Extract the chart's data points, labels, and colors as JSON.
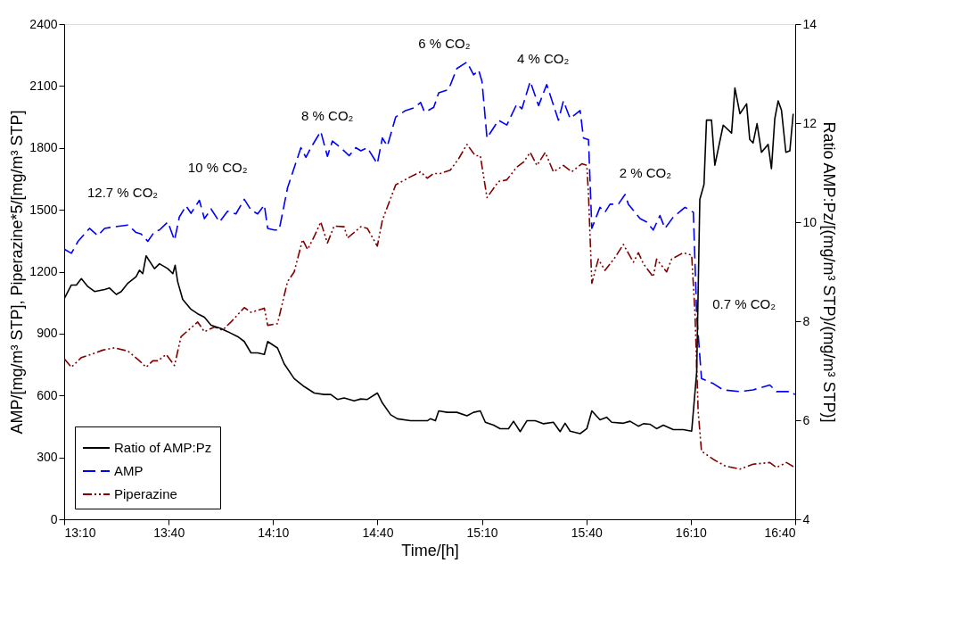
{
  "chart_data": {
    "type": "line",
    "xlabel": "Time/[h]",
    "ylabel": "AMP/[mg/m³ STP], Piperazine*5/[mg/m³ STP]",
    "y2label": "Ratio AMP:Pz/[(mg/m³ STP)/(mg/m³ STP)]",
    "xlim": [
      13.1667,
      16.6667
    ],
    "xticks": [
      {
        "value": 13.1667,
        "label": "13:10"
      },
      {
        "value": 13.6667,
        "label": "13:40"
      },
      {
        "value": 14.1667,
        "label": "14:10"
      },
      {
        "value": 14.6667,
        "label": "14:40"
      },
      {
        "value": 15.1667,
        "label": "15:10"
      },
      {
        "value": 15.6667,
        "label": "15:40"
      },
      {
        "value": 16.1667,
        "label": "16:10"
      },
      {
        "value": 16.6667,
        "label": "16:40"
      }
    ],
    "ylim": [
      0,
      2400
    ],
    "yticks": [
      0,
      300,
      600,
      900,
      1200,
      1500,
      1800,
      2100,
      2400
    ],
    "y2lim": [
      4,
      14
    ],
    "y2ticks": [
      4,
      6,
      8,
      10,
      12,
      14
    ],
    "grid": false,
    "legend": "bottom left",
    "marker": "none",
    "series": [
      {
        "name": "Ratio of AMP:Pz",
        "color": "#000000",
        "axis": "y2",
        "line_style": "solid",
        "x": [
          13.169,
          13.201,
          13.225,
          13.249,
          13.28,
          13.312,
          13.36,
          13.384,
          13.416,
          13.44,
          13.472,
          13.511,
          13.527,
          13.543,
          13.559,
          13.599,
          13.623,
          13.663,
          13.687,
          13.698,
          13.71,
          13.734,
          13.774,
          13.806,
          13.838,
          13.87,
          13.918,
          13.949,
          13.997,
          14.029,
          14.061,
          14.093,
          14.125,
          14.141,
          14.188,
          14.22,
          14.268,
          14.316,
          14.364,
          14.411,
          14.443,
          14.475,
          14.507,
          14.555,
          14.587,
          14.618,
          14.666,
          14.69,
          14.73,
          14.762,
          14.825,
          14.905,
          14.92,
          14.944,
          14.96,
          15.0,
          15.047,
          15.095,
          15.127,
          15.159,
          15.183,
          15.223,
          15.254,
          15.294,
          15.318,
          15.35,
          15.382,
          15.422,
          15.462,
          15.509,
          15.541,
          15.565,
          15.589,
          15.637,
          15.669,
          15.693,
          15.732,
          15.764,
          15.788,
          15.844,
          15.876,
          15.916,
          15.94,
          15.971,
          16.003,
          16.035,
          16.083,
          16.131,
          16.171,
          16.195,
          16.21,
          16.23,
          16.242,
          16.266,
          16.282,
          16.322,
          16.362,
          16.378,
          16.402,
          16.434,
          16.449,
          16.465,
          16.484,
          16.505,
          16.537,
          16.553,
          16.569,
          16.585,
          16.601,
          16.622,
          16.641,
          16.657
        ],
        "values": [
          8.47,
          8.73,
          8.73,
          8.86,
          8.7,
          8.6,
          8.64,
          8.67,
          8.54,
          8.6,
          8.77,
          8.9,
          9.03,
          8.96,
          9.32,
          9.06,
          9.16,
          9.06,
          8.96,
          9.13,
          8.8,
          8.44,
          8.24,
          8.15,
          8.08,
          7.92,
          7.85,
          7.79,
          7.69,
          7.59,
          7.36,
          7.36,
          7.33,
          7.59,
          7.46,
          7.14,
          6.84,
          6.68,
          6.55,
          6.52,
          6.52,
          6.42,
          6.45,
          6.39,
          6.43,
          6.42,
          6.55,
          6.35,
          6.11,
          6.03,
          5.99,
          5.99,
          6.03,
          5.99,
          6.19,
          6.16,
          6.16,
          6.09,
          6.16,
          6.19,
          5.96,
          5.9,
          5.83,
          5.83,
          5.98,
          5.77,
          5.99,
          5.99,
          5.93,
          5.96,
          5.77,
          5.94,
          5.78,
          5.73,
          5.83,
          6.19,
          6.01,
          6.06,
          5.96,
          5.94,
          5.98,
          5.88,
          5.93,
          5.92,
          5.83,
          5.9,
          5.81,
          5.81,
          5.78,
          6.97,
          10.46,
          10.76,
          12.06,
          12.06,
          11.15,
          11.96,
          11.8,
          12.71,
          12.19,
          12.39,
          11.67,
          11.6,
          11.99,
          11.41,
          11.57,
          11.08,
          12.09,
          12.45,
          12.26,
          11.41,
          11.44,
          12.19
        ]
      },
      {
        "name": "AMP",
        "color": "#0000ff",
        "line_style": "dashed",
        "x": [
          13.169,
          13.201,
          13.233,
          13.288,
          13.328,
          13.36,
          13.408,
          13.472,
          13.511,
          13.535,
          13.567,
          13.599,
          13.623,
          13.663,
          13.695,
          13.718,
          13.75,
          13.774,
          13.814,
          13.838,
          13.87,
          13.91,
          13.949,
          13.989,
          14.029,
          14.061,
          14.093,
          14.125,
          14.141,
          14.172,
          14.196,
          14.236,
          14.3,
          14.324,
          14.348,
          14.395,
          14.427,
          14.451,
          14.491,
          14.531,
          14.563,
          14.587,
          14.618,
          14.666,
          14.69,
          14.714,
          14.754,
          14.801,
          14.841,
          14.873,
          14.889,
          14.896,
          14.936,
          14.96,
          15.007,
          15.047,
          15.095,
          15.127,
          15.151,
          15.167,
          15.191,
          15.246,
          15.286,
          15.334,
          15.358,
          15.398,
          15.438,
          15.477,
          15.533,
          15.557,
          15.589,
          15.637,
          15.653,
          15.677,
          15.693,
          15.732,
          15.756,
          15.78,
          15.82,
          15.852,
          15.868,
          15.924,
          15.955,
          15.987,
          16.019,
          16.043,
          16.083,
          16.139,
          16.179,
          16.195,
          16.218,
          16.274,
          16.322,
          16.402,
          16.465,
          16.545,
          16.577,
          16.649,
          16.665
        ],
        "values": [
          1308,
          1289,
          1347,
          1410,
          1374,
          1410,
          1418,
          1426,
          1390,
          1383,
          1347,
          1394,
          1402,
          1441,
          1352,
          1465,
          1519,
          1483,
          1546,
          1457,
          1504,
          1441,
          1493,
          1480,
          1551,
          1499,
          1480,
          1523,
          1410,
          1402,
          1402,
          1606,
          1801,
          1754,
          1801,
          1880,
          1759,
          1833,
          1801,
          1762,
          1801,
          1786,
          1801,
          1723,
          1848,
          1809,
          1950,
          1981,
          1994,
          2020,
          1981,
          1973,
          1997,
          2067,
          2083,
          2185,
          2216,
          2154,
          2177,
          2122,
          1848,
          1934,
          1911,
          2013,
          1989,
          2122,
          2005,
          2107,
          1934,
          2028,
          1942,
          1981,
          1848,
          1840,
          1410,
          1512,
          1488,
          1527,
          1527,
          1574,
          1527,
          1457,
          1441,
          1402,
          1472,
          1410,
          1465,
          1512,
          1488,
          995,
          682,
          658,
          627,
          619,
          627,
          651,
          619,
          619,
          604
        ]
      },
      {
        "name": "Piperazine",
        "color": "#800000",
        "line_style": "dotted",
        "x": [
          13.169,
          13.201,
          13.249,
          13.296,
          13.352,
          13.408,
          13.472,
          13.527,
          13.559,
          13.591,
          13.615,
          13.655,
          13.695,
          13.726,
          13.806,
          13.838,
          13.886,
          13.925,
          13.965,
          14.029,
          14.061,
          14.125,
          14.141,
          14.188,
          14.236,
          14.268,
          14.308,
          14.332,
          14.364,
          14.395,
          14.427,
          14.459,
          14.507,
          14.523,
          14.587,
          14.618,
          14.666,
          14.69,
          14.722,
          14.754,
          14.825,
          14.873,
          14.905,
          14.936,
          14.968,
          15.015,
          15.055,
          15.095,
          15.135,
          15.159,
          15.191,
          15.246,
          15.286,
          15.334,
          15.366,
          15.398,
          15.43,
          15.47,
          15.509,
          15.557,
          15.597,
          15.645,
          15.669,
          15.677,
          15.693,
          15.724,
          15.756,
          15.804,
          15.844,
          15.892,
          15.916,
          15.94,
          15.987,
          16.003,
          16.051,
          16.075,
          16.131,
          16.171,
          16.187,
          16.202,
          16.218,
          16.274,
          16.33,
          16.402,
          16.465,
          16.545,
          16.577,
          16.625,
          16.665
        ],
        "values": [
          776,
          737,
          784,
          799,
          820,
          831,
          815,
          768,
          737,
          768,
          768,
          799,
          745,
          885,
          956,
          909,
          932,
          917,
          956,
          1026,
          1003,
          1023,
          940,
          948,
          1152,
          1199,
          1355,
          1308,
          1371,
          1441,
          1339,
          1421,
          1418,
          1363,
          1418,
          1410,
          1324,
          1449,
          1535,
          1621,
          1660,
          1684,
          1653,
          1676,
          1676,
          1692,
          1747,
          1817,
          1762,
          1762,
          1559,
          1637,
          1645,
          1707,
          1731,
          1778,
          1715,
          1778,
          1684,
          1715,
          1684,
          1723,
          1715,
          1574,
          1144,
          1261,
          1206,
          1269,
          1332,
          1246,
          1292,
          1238,
          1175,
          1261,
          1199,
          1261,
          1292,
          1280,
          995,
          525,
          330,
          291,
          259,
          243,
          267,
          275,
          251,
          275,
          251
        ]
      }
    ],
    "annotations": [
      "12.7 % CO₂",
      "10 % CO₂",
      "8 % CO₂",
      "6 % CO₂",
      "4 % CO₂",
      "2 % CO₂",
      "0.7 % CO₂"
    ]
  }
}
